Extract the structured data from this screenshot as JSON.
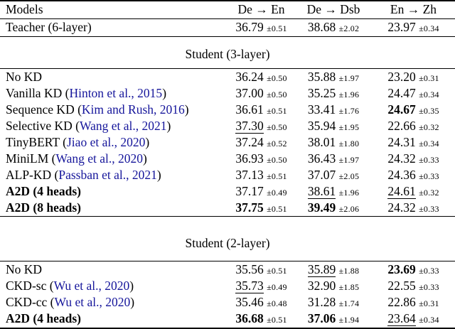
{
  "colors": {
    "citation": "#16169B",
    "text": "#000000",
    "rule": "#000000"
  },
  "t": {
    "header": {
      "models": "Models",
      "col1": "De → En",
      "col2": "De → Dsb",
      "col3": "En → Zh"
    },
    "teacher": {
      "label": "Teacher (6-layer)",
      "c1v": "36.79",
      "c1e": "±0.51",
      "c2v": "38.68",
      "c2e": "±2.02",
      "c3v": "23.97",
      "c3e": "±0.34"
    },
    "section1": "Student (3-layer)",
    "rows1": [
      {
        "prefix": "No KD",
        "cite": "",
        "suffix": "",
        "c1v": "36.24",
        "c1e": "±0.50",
        "c2v": "35.88",
        "c2e": "±1.97",
        "c3v": "23.20",
        "c3e": "±0.31"
      },
      {
        "prefix": "Vanilla KD (",
        "cite": "Hinton et al., 2015",
        "suffix": ")",
        "c1v": "37.00",
        "c1e": "±0.50",
        "c2v": "35.25",
        "c2e": "±1.96",
        "c3v": "24.47",
        "c3e": "±0.34"
      },
      {
        "prefix": "Sequence KD (",
        "cite": "Kim and Rush, 2016",
        "suffix": ")",
        "c1v": "36.61",
        "c1e": "±0.51",
        "c2v": "33.41",
        "c2e": "±1.76",
        "c3v": "24.67",
        "c3e": "±0.35"
      },
      {
        "prefix": "Selective KD (",
        "cite": "Wang et al., 2021",
        "suffix": ")",
        "c1v": "37.30",
        "c1e": "±0.50",
        "c2v": "35.94",
        "c2e": "±1.95",
        "c3v": "22.66",
        "c3e": "±0.32"
      },
      {
        "prefix": "TinyBERT (",
        "cite": "Jiao et al., 2020",
        "suffix": ")",
        "c1v": "37.24",
        "c1e": "±0.52",
        "c2v": "38.01",
        "c2e": "±1.80",
        "c3v": "24.31",
        "c3e": "±0.34"
      },
      {
        "prefix": "MiniLM (",
        "cite": "Wang et al., 2020",
        "suffix": ")",
        "c1v": "36.93",
        "c1e": "±0.50",
        "c2v": "36.43",
        "c2e": "±1.97",
        "c3v": "24.32",
        "c3e": "±0.33"
      },
      {
        "prefix": "ALP-KD (",
        "cite": "Passban et al., 2021",
        "suffix": ")",
        "c1v": "37.13",
        "c1e": "±0.51",
        "c2v": "37.07",
        "c2e": "±2.05",
        "c3v": "24.36",
        "c3e": "±0.33"
      },
      {
        "prefix": "A2D (4 heads)",
        "cite": "",
        "suffix": "",
        "c1v": "37.17",
        "c1e": "±0.49",
        "c2v": "38.61",
        "c2e": "±1.96",
        "c3v": "24.61",
        "c3e": "±0.32"
      },
      {
        "prefix": "A2D (8 heads)",
        "cite": "",
        "suffix": "",
        "c1v": "37.75",
        "c1e": "±0.51",
        "c2v": "39.49",
        "c2e": "±2.06",
        "c3v": "24.32",
        "c3e": "±0.33"
      }
    ],
    "section2": "Student (2-layer)",
    "rows2": [
      {
        "prefix": "No KD",
        "cite": "",
        "suffix": "",
        "c1v": "35.56",
        "c1e": "±0.51",
        "c2v": "35.89",
        "c2e": "±1.88",
        "c3v": "23.69",
        "c3e": "±0.33"
      },
      {
        "prefix": "CKD-sc (",
        "cite": "Wu et al., 2020",
        "suffix": ")",
        "c1v": "35.73",
        "c1e": "±0.49",
        "c2v": "32.90",
        "c2e": "±1.85",
        "c3v": "22.55",
        "c3e": "±0.33"
      },
      {
        "prefix": "CKD-cc (",
        "cite": "Wu et al., 2020",
        "suffix": ")",
        "c1v": "35.46",
        "c1e": "±0.48",
        "c2v": "31.28",
        "c2e": "±1.74",
        "c3v": "22.86",
        "c3e": "±0.31"
      },
      {
        "prefix": "A2D (4 heads)",
        "cite": "",
        "suffix": "",
        "c1v": "36.68",
        "c1e": "±0.51",
        "c2v": "37.06",
        "c2e": "±1.94",
        "c3v": "23.64",
        "c3e": "±0.34"
      }
    ]
  }
}
